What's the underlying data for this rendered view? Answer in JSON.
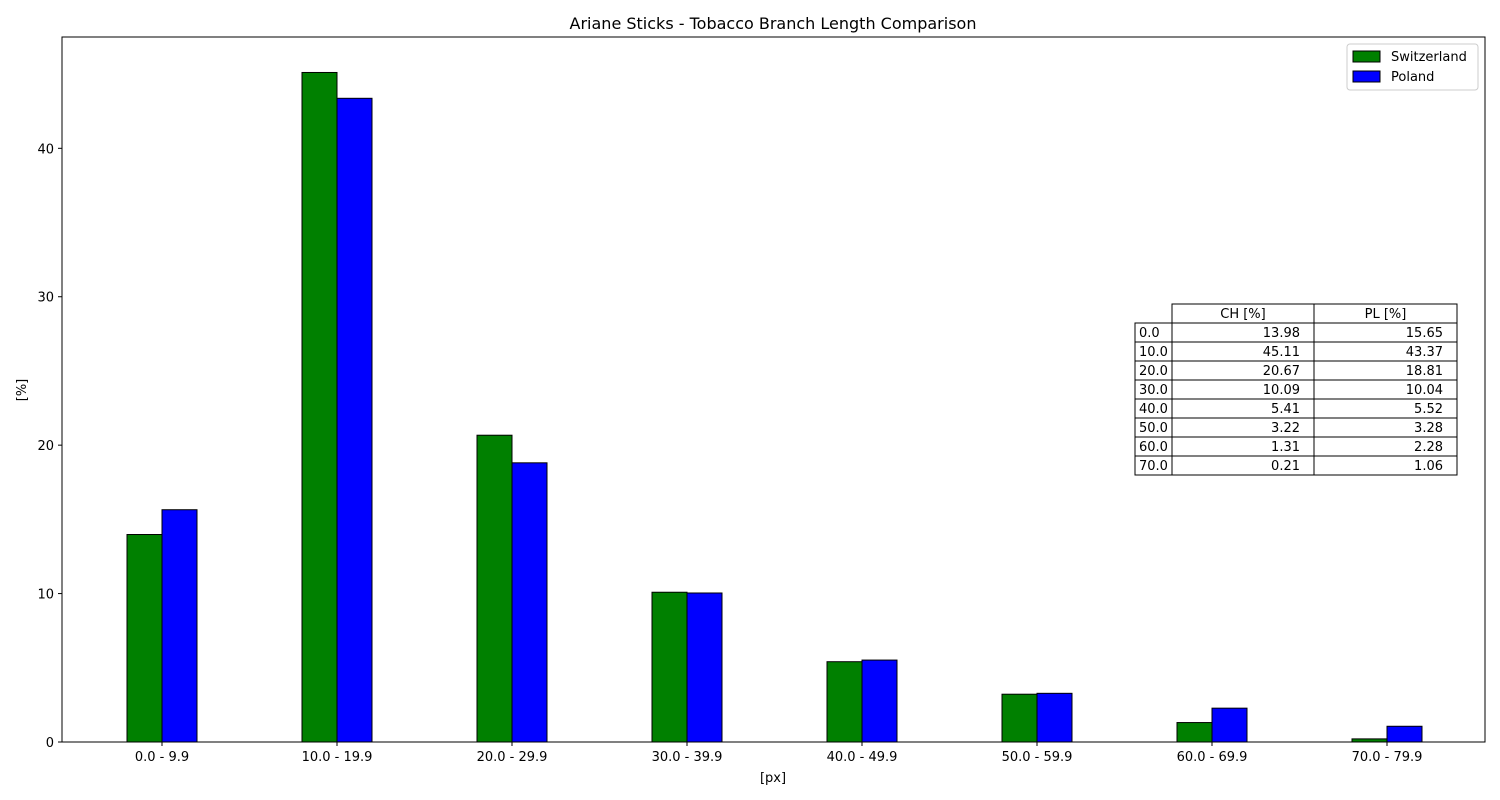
{
  "chart_data": {
    "type": "bar",
    "title": "Ariane Sticks - Tobacco Branch Length Comparison",
    "xlabel": "[px]",
    "ylabel": "[%]",
    "ylim": [
      0,
      47.5
    ],
    "yticks": [
      0,
      10,
      20,
      30,
      40
    ],
    "grid": false,
    "legend_position": "top-right",
    "categories": [
      "0.0 - 9.9",
      "10.0 - 19.9",
      "20.0 - 29.9",
      "30.0 - 39.9",
      "40.0 - 49.9",
      "50.0 - 59.9",
      "60.0 - 69.9",
      "70.0 - 79.9"
    ],
    "series": [
      {
        "name": "Switzerland",
        "color": "#008000",
        "values": [
          13.98,
          45.11,
          20.67,
          10.09,
          5.41,
          3.22,
          1.31,
          0.21
        ]
      },
      {
        "name": "Poland",
        "color": "#0000ff",
        "values": [
          15.65,
          43.37,
          18.81,
          10.04,
          5.52,
          3.28,
          2.28,
          1.06
        ]
      }
    ],
    "table": {
      "columns": [
        "CH [%]",
        "PL [%]"
      ],
      "rows": [
        {
          "label": "0.0",
          "cells": [
            "13.98",
            "15.65"
          ]
        },
        {
          "label": "10.0",
          "cells": [
            "45.11",
            "43.37"
          ]
        },
        {
          "label": "20.0",
          "cells": [
            "20.67",
            "18.81"
          ]
        },
        {
          "label": "30.0",
          "cells": [
            "10.09",
            "10.04"
          ]
        },
        {
          "label": "40.0",
          "cells": [
            "5.41",
            "5.52"
          ]
        },
        {
          "label": "50.0",
          "cells": [
            "3.22",
            "3.28"
          ]
        },
        {
          "label": "60.0",
          "cells": [
            "1.31",
            "2.28"
          ]
        },
        {
          "label": "70.0",
          "cells": [
            "0.21",
            "1.06"
          ]
        }
      ]
    }
  }
}
